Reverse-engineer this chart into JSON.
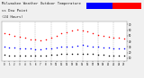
{
  "title": "Milwaukee Weather Outdoor Temperature",
  "title2": "vs Dew Point",
  "title3": "(24 Hours)",
  "title_fontsize": 2.8,
  "bg_color": "#f0f0f0",
  "plot_bg": "#ffffff",
  "grid_color": "#aaaaaa",
  "ylim": [
    5,
    75
  ],
  "xlim": [
    -0.5,
    23.5
  ],
  "temp_color": "#ff0000",
  "dew_color": "#0000ff",
  "indoor_color": "#000000",
  "temp_data": [
    [
      0,
      55
    ],
    [
      1,
      53
    ],
    [
      2,
      50
    ],
    [
      3,
      48
    ],
    [
      4,
      46
    ],
    [
      5,
      44
    ],
    [
      6,
      43
    ],
    [
      7,
      42
    ],
    [
      8,
      43
    ],
    [
      9,
      46
    ],
    [
      10,
      50
    ],
    [
      11,
      54
    ],
    [
      12,
      57
    ],
    [
      13,
      60
    ],
    [
      14,
      61
    ],
    [
      15,
      60
    ],
    [
      16,
      58
    ],
    [
      17,
      55
    ],
    [
      18,
      52
    ],
    [
      19,
      50
    ],
    [
      20,
      48
    ],
    [
      21,
      47
    ],
    [
      22,
      46
    ],
    [
      23,
      45
    ]
  ],
  "dew_data": [
    [
      0,
      30
    ],
    [
      1,
      29
    ],
    [
      2,
      29
    ],
    [
      3,
      28
    ],
    [
      4,
      27
    ],
    [
      5,
      27
    ],
    [
      6,
      26
    ],
    [
      7,
      26
    ],
    [
      8,
      27
    ],
    [
      9,
      28
    ],
    [
      10,
      29
    ],
    [
      11,
      30
    ],
    [
      12,
      31
    ],
    [
      13,
      31
    ],
    [
      14,
      32
    ],
    [
      15,
      33
    ],
    [
      16,
      32
    ],
    [
      17,
      31
    ],
    [
      18,
      30
    ],
    [
      19,
      29
    ],
    [
      20,
      29
    ],
    [
      21,
      28
    ],
    [
      22,
      28
    ],
    [
      23,
      27
    ]
  ],
  "indoor_data": [
    [
      0,
      16
    ],
    [
      1,
      15
    ],
    [
      2,
      15
    ],
    [
      3,
      14
    ],
    [
      4,
      14
    ],
    [
      5,
      14
    ],
    [
      6,
      14
    ],
    [
      7,
      14
    ],
    [
      8,
      15
    ],
    [
      9,
      16
    ],
    [
      10,
      16
    ],
    [
      11,
      17
    ],
    [
      12,
      17
    ],
    [
      13,
      18
    ],
    [
      14,
      18
    ],
    [
      15,
      18
    ],
    [
      16,
      17
    ],
    [
      17,
      17
    ],
    [
      18,
      16
    ],
    [
      19,
      16
    ],
    [
      20,
      15
    ],
    [
      21,
      15
    ],
    [
      22,
      15
    ],
    [
      23,
      14
    ]
  ],
  "ytick_vals": [
    10,
    20,
    30,
    40,
    50,
    60,
    70
  ],
  "xtick_vals": [
    0,
    1,
    2,
    3,
    4,
    5,
    6,
    7,
    8,
    9,
    10,
    11,
    12,
    13,
    14,
    15,
    16,
    17,
    18,
    19,
    20,
    21,
    22,
    23
  ],
  "vgrid_hours": [
    3,
    6,
    9,
    12,
    15,
    18,
    21
  ],
  "marker_size": 1.2
}
